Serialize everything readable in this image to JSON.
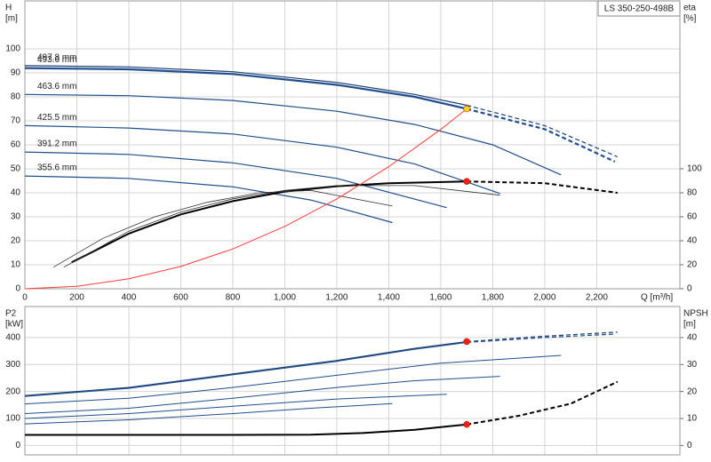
{
  "chart_data": [
    {
      "type": "line",
      "title": "LS 350-250-498B",
      "ylabel": "H",
      "yunit": "[m]",
      "y2label": "eta",
      "y2unit": "[%]",
      "xlabel": "Q [m³/h]",
      "xlim": [
        0,
        2520
      ],
      "xticks": [
        0,
        200,
        400,
        600,
        800,
        {
          "value": 1000,
          "label": "1,000"
        },
        {
          "value": 1200,
          "label": "1,200"
        },
        {
          "value": 1400,
          "label": "1,400"
        },
        {
          "value": 1600,
          "label": "1,600"
        },
        {
          "value": 1800,
          "label": "1,800"
        },
        {
          "value": 2000,
          "label": "2,000"
        },
        {
          "value": 2200,
          "label": "2,200"
        }
      ],
      "ylim": [
        0,
        120
      ],
      "yticks": [
        0,
        10,
        20,
        30,
        40,
        50,
        60,
        70,
        80,
        90,
        100
      ],
      "y2lim": [
        0,
        240
      ],
      "y2ticks": [
        0,
        20,
        40,
        60,
        80,
        100
      ],
      "grid": true,
      "series": [
        {
          "name": "497.8 mm",
          "color": "#1f3f73",
          "width": 1.2,
          "dashed_from": 1700,
          "x": [
            0,
            400,
            800,
            1200,
            1500,
            1700,
            2000,
            2280
          ],
          "values": [
            93,
            92.5,
            90.5,
            86,
            81,
            76.5,
            68,
            55
          ]
        },
        {
          "name": "493.6 mm",
          "color": "#1f4f8f",
          "width": 2.2,
          "dashed_from": 1700,
          "x": [
            0,
            400,
            800,
            1200,
            1500,
            1700,
            2000,
            2270
          ],
          "values": [
            92,
            91.5,
            89.5,
            85,
            80,
            75,
            66.5,
            53
          ]
        },
        {
          "name": "463.6 mm",
          "color": "#1f4f8f",
          "width": 1.2,
          "x": [
            0,
            400,
            800,
            1200,
            1500,
            1800,
            2063
          ],
          "values": [
            81,
            80.5,
            78.5,
            74,
            68.5,
            60,
            47.5
          ]
        },
        {
          "name": "425.5 mm",
          "color": "#1f4f8f",
          "width": 1.2,
          "x": [
            0,
            400,
            800,
            1200,
            1500,
            1828
          ],
          "values": [
            68,
            67,
            64.5,
            59,
            52,
            39.7
          ]
        },
        {
          "name": "391.2 mm",
          "color": "#1f4f8f",
          "width": 1.2,
          "x": [
            0,
            400,
            800,
            1200,
            1623
          ],
          "values": [
            57,
            56,
            52.5,
            46,
            33.8
          ]
        },
        {
          "name": "355.6 mm",
          "color": "#1f4f8f",
          "width": 1.2,
          "x": [
            0,
            400,
            800,
            1100,
            1414
          ],
          "values": [
            47,
            46,
            42.5,
            37,
            27.6
          ]
        },
        {
          "axis": "y2",
          "color": "#000000",
          "width": 2,
          "dashed_from": 1700,
          "x": [
            180,
            400,
            600,
            800,
            1000,
            1200,
            1400,
            1700,
            2000,
            2280
          ],
          "values": [
            22,
            46,
            62,
            73,
            81,
            85.5,
            88,
            89.5,
            88,
            80
          ]
        },
        {
          "axis": "y2",
          "color": "#333333",
          "width": 0.8,
          "x": [
            150,
            400,
            600,
            800,
            1000,
            1200,
            1500,
            1828
          ],
          "values": [
            18,
            48,
            64,
            75,
            82,
            86,
            86,
            78
          ]
        },
        {
          "axis": "y2",
          "color": "#333333",
          "width": 0.8,
          "x": [
            110,
            300,
            500,
            700,
            900,
            1100,
            1414
          ],
          "values": [
            18,
            42,
            60,
            72,
            80,
            82,
            69
          ]
        },
        {
          "color": "#ff3b3b",
          "width": 1,
          "x": [
            0,
            200,
            400,
            600,
            800,
            1000,
            1200,
            1400,
            1600,
            1700
          ],
          "values": [
            0,
            1,
            4.2,
            9.3,
            16.6,
            26,
            37.4,
            50.9,
            66.4,
            75
          ]
        }
      ],
      "markers": [
        {
          "x": 1700,
          "y": 75,
          "color": "#ffd21f"
        },
        {
          "x": 1700,
          "y": 89.5,
          "axis": "y2",
          "color": "#ff1a1a"
        }
      ]
    },
    {
      "type": "line",
      "ylabel": "P2",
      "yunit": "[kW]",
      "y2label": "NPSH",
      "y2unit": "[m]",
      "xlim": [
        0,
        2520
      ],
      "ylim": [
        -35,
        515
      ],
      "yticks": [
        0,
        100,
        200,
        300,
        400
      ],
      "y2lim": [
        -3.5,
        51.5
      ],
      "y2ticks": [
        0,
        10,
        20,
        30,
        40
      ],
      "grid": true,
      "series": [
        {
          "color": "#1f3f73",
          "width": 1.2,
          "dashed_from": 1700,
          "x": [
            0,
            400,
            800,
            1200,
            1500,
            1700,
            2000,
            2280
          ],
          "values": [
            185,
            215,
            265,
            315,
            360,
            385,
            405,
            420
          ]
        },
        {
          "color": "#1f4f8f",
          "width": 1.2,
          "dashed_from": 1700,
          "x": [
            0,
            400,
            800,
            1200,
            1500,
            1700,
            2000,
            2270
          ],
          "values": [
            182,
            212,
            262,
            312,
            357,
            382,
            400,
            413
          ]
        },
        {
          "color": "#1f4f8f",
          "width": 1,
          "x": [
            0,
            400,
            800,
            1200,
            1600,
            2063
          ],
          "values": [
            154,
            175,
            215,
            260,
            305,
            334
          ]
        },
        {
          "color": "#1f4f8f",
          "width": 1,
          "x": [
            0,
            400,
            800,
            1200,
            1500,
            1828
          ],
          "values": [
            118,
            138,
            175,
            215,
            240,
            256
          ]
        },
        {
          "color": "#1f4f8f",
          "width": 1,
          "x": [
            0,
            400,
            800,
            1200,
            1623
          ],
          "values": [
            100,
            118,
            145,
            172,
            190
          ]
        },
        {
          "color": "#1f4f8f",
          "width": 1,
          "x": [
            0,
            400,
            800,
            1100,
            1414
          ],
          "values": [
            80,
            95,
            118,
            138,
            155
          ]
        },
        {
          "axis": "y2",
          "color": "#000000",
          "width": 2,
          "dashed_from": 1700,
          "x": [
            0,
            400,
            800,
            1100,
            1300,
            1500,
            1700,
            1900,
            2100,
            2280
          ],
          "values": [
            3.9,
            3.9,
            3.9,
            4,
            4.6,
            5.8,
            7.8,
            11,
            15.5,
            23.6
          ]
        }
      ],
      "markers": [
        {
          "x": 1700,
          "y": 385,
          "color": "#ff1a1a"
        },
        {
          "x": 1700,
          "y": 7.8,
          "axis": "y2",
          "color": "#ff1a1a"
        }
      ]
    }
  ]
}
